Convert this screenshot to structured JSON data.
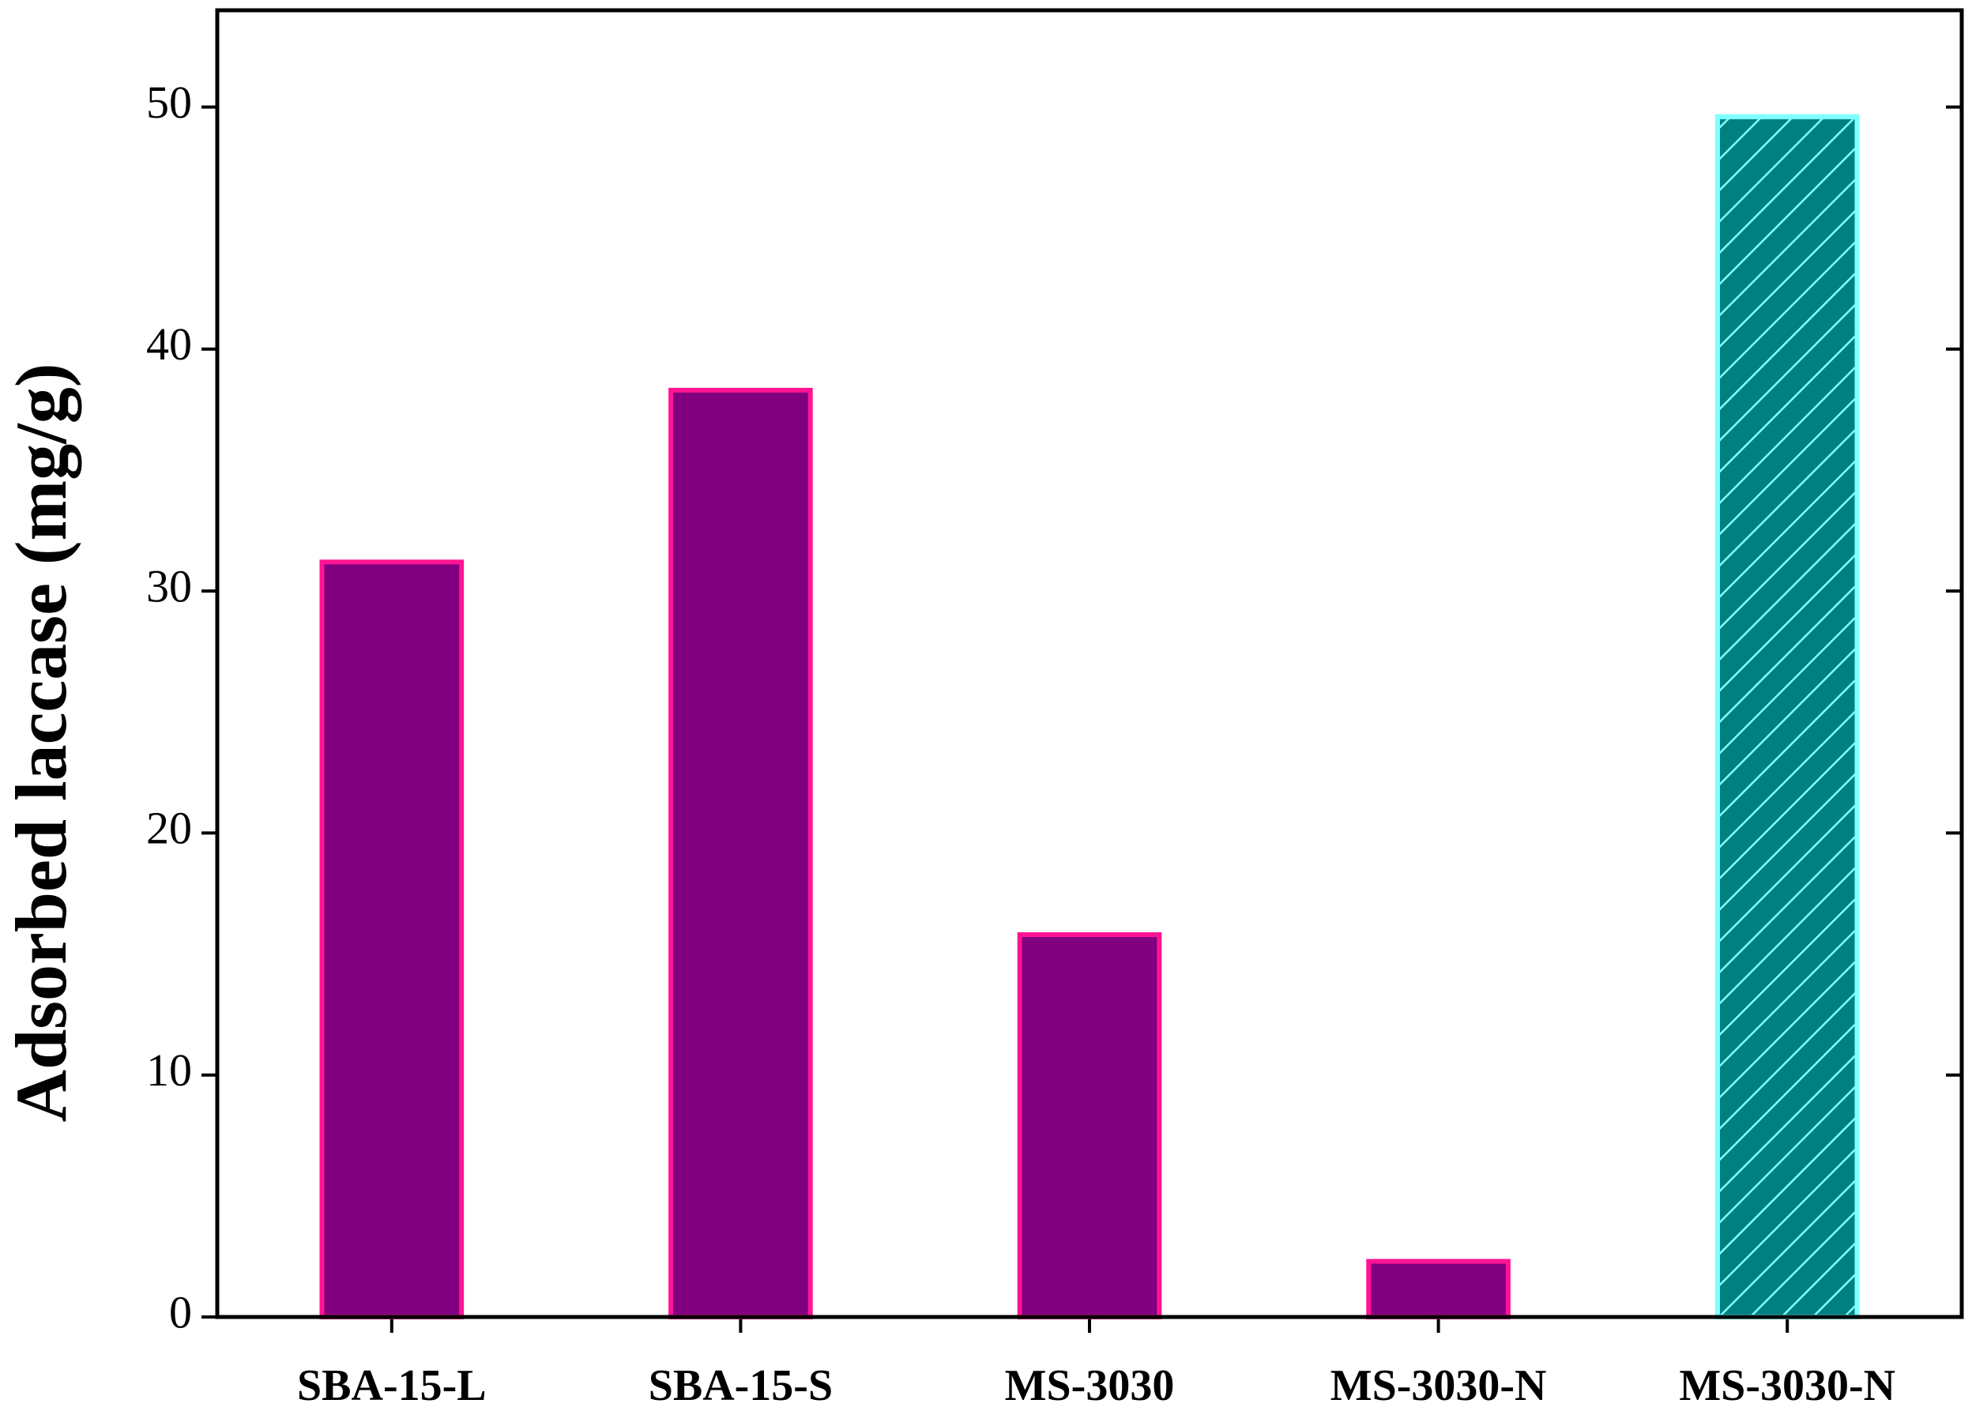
{
  "chart_data": {
    "type": "bar",
    "y_label": "Adsorbed laccase (mg/g)",
    "categories": [
      "SBA-15-L",
      "SBA-15-S",
      "MS-3030",
      "MS-3030-N",
      "MS-3030-N"
    ],
    "values": [
      31.2,
      38.3,
      15.8,
      2.3,
      49.6
    ],
    "colors": [
      "#800080",
      "#800080",
      "#800080",
      "#800080",
      "#008080"
    ],
    "edge_colors": [
      "#ff1493",
      "#ff1493",
      "#ff1493",
      "#ff1493",
      "#7fffff"
    ],
    "hatched": [
      false,
      false,
      false,
      false,
      true
    ],
    "ylim": [
      0,
      54
    ],
    "yticks": [
      0,
      10,
      20,
      30,
      40,
      50
    ]
  }
}
